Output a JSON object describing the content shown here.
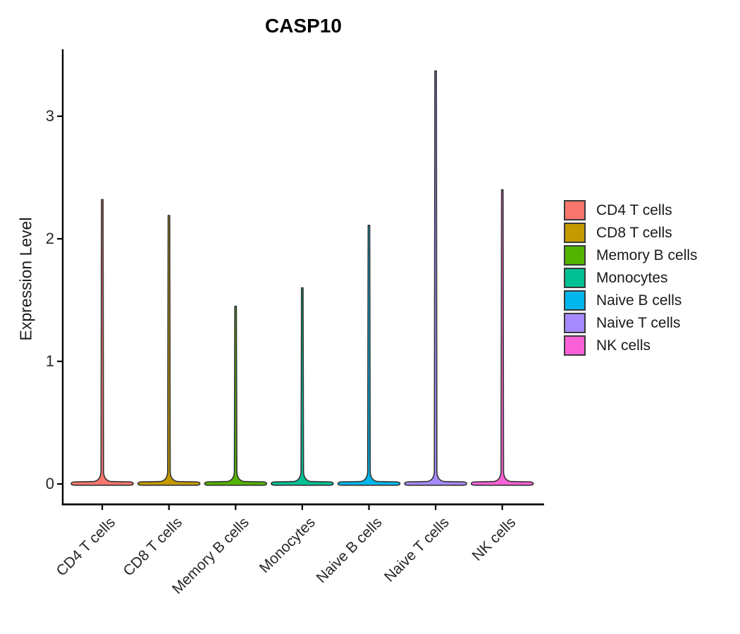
{
  "title": "CASP10",
  "chart_data": {
    "type": "violin",
    "title": "CASP10",
    "xlabel": "",
    "ylabel": "Expression Level",
    "yticks": [
      0,
      1,
      2,
      3
    ],
    "ylim": [
      -0.17,
      3.55
    ],
    "grid": false,
    "baseline_value": 0,
    "categories": [
      "CD4 T cells",
      "CD8 T cells",
      "Memory B cells",
      "Monocytes",
      "Naive B cells",
      "Naive T cells",
      "NK cells"
    ],
    "series": [
      {
        "name": "max_expression_level",
        "values": [
          2.32,
          2.19,
          1.45,
          1.6,
          2.11,
          3.37,
          2.4
        ]
      }
    ],
    "legend": {
      "position": "right",
      "entries": [
        {
          "label": "CD4 T cells",
          "color": "#F8766D"
        },
        {
          "label": "CD8 T cells",
          "color": "#C49A00"
        },
        {
          "label": "Memory B cells",
          "color": "#53B400"
        },
        {
          "label": "Monocytes",
          "color": "#00C094"
        },
        {
          "label": "Naive B cells",
          "color": "#00B6EB"
        },
        {
          "label": "Naive T cells",
          "color": "#A58AFF"
        },
        {
          "label": "NK cells",
          "color": "#FB61D7"
        }
      ]
    },
    "colors": {
      "violin_outline": "#333333",
      "axis_line": "#000000",
      "tick_text": "#262626",
      "background": "#ffffff"
    }
  }
}
